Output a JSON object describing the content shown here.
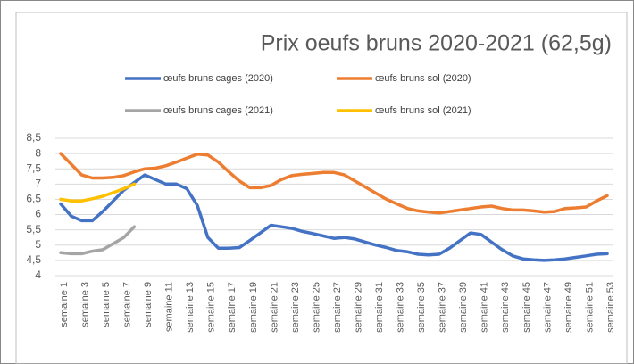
{
  "chart_data": {
    "type": "line",
    "title": "Prix oeufs bruns 2020-2021 (62,5g)",
    "categories": [
      "semaine 1",
      null,
      "semaine 3",
      null,
      "semaine 5",
      null,
      "semaine 7",
      null,
      "semaine 9",
      null,
      "semaine 11",
      null,
      "semaine 13",
      null,
      "semaine 15",
      null,
      "semaine 17",
      null,
      "semaine 19",
      null,
      "semaine 21",
      null,
      "semaine 23",
      null,
      "semaine 25",
      null,
      "semaine 27",
      null,
      "semaine 29",
      null,
      "semaine 31",
      null,
      "semaine 33",
      null,
      "semaine 35",
      null,
      "semaine 37",
      null,
      "semaine 39",
      null,
      "semaine 41",
      null,
      "semaine 43",
      null,
      "semaine 45",
      null,
      "semaine 47",
      null,
      "semaine 49",
      null,
      "semaine 51",
      null,
      "semaine 53"
    ],
    "series": [
      {
        "name": "œufs bruns cages (2020)",
        "color": "#4472c4",
        "values": [
          6.35,
          5.95,
          5.8,
          5.8,
          6.1,
          6.45,
          6.8,
          7.05,
          7.3,
          7.15,
          7.0,
          7.0,
          6.85,
          6.3,
          5.25,
          4.9,
          4.9,
          4.92,
          5.15,
          5.4,
          5.65,
          5.6,
          5.55,
          5.45,
          5.38,
          5.3,
          5.22,
          5.25,
          5.2,
          5.1,
          5.0,
          4.92,
          4.82,
          4.78,
          4.7,
          4.68,
          4.7,
          4.9,
          5.15,
          5.4,
          5.35,
          5.1,
          4.85,
          4.65,
          4.55,
          4.52,
          4.5,
          4.52,
          4.55,
          4.6,
          4.65,
          4.7,
          4.72
        ]
      },
      {
        "name": "œufs bruns sol (2020)",
        "color": "#ed7d31",
        "values": [
          8.0,
          7.65,
          7.3,
          7.2,
          7.2,
          7.22,
          7.28,
          7.4,
          7.5,
          7.52,
          7.6,
          7.72,
          7.85,
          7.98,
          7.95,
          7.72,
          7.4,
          7.1,
          6.88,
          6.88,
          6.95,
          7.15,
          7.28,
          7.32,
          7.35,
          7.38,
          7.38,
          7.3,
          7.1,
          6.9,
          6.7,
          6.5,
          6.35,
          6.2,
          6.12,
          6.08,
          6.05,
          6.1,
          6.15,
          6.2,
          6.25,
          6.28,
          6.2,
          6.15,
          6.15,
          6.12,
          6.08,
          6.1,
          6.2,
          6.22,
          6.25,
          6.45,
          6.62
        ]
      },
      {
        "name": "œufs bruns cages (2021)",
        "color": "#a5a5a5",
        "values": [
          4.75,
          4.72,
          4.72,
          4.8,
          4.85,
          5.05,
          5.25,
          5.6,
          null,
          null,
          null,
          null,
          null,
          null,
          null,
          null,
          null,
          null,
          null,
          null,
          null,
          null,
          null,
          null,
          null,
          null,
          null,
          null,
          null,
          null,
          null,
          null,
          null,
          null,
          null,
          null,
          null,
          null,
          null,
          null,
          null,
          null,
          null,
          null,
          null,
          null,
          null,
          null,
          null,
          null,
          null,
          null,
          null
        ]
      },
      {
        "name": "œufs bruns sol (2021)",
        "color": "#ffc000",
        "values": [
          6.5,
          6.45,
          6.45,
          6.52,
          6.6,
          6.72,
          6.85,
          7.0,
          null,
          null,
          null,
          null,
          null,
          null,
          null,
          null,
          null,
          null,
          null,
          null,
          null,
          null,
          null,
          null,
          null,
          null,
          null,
          null,
          null,
          null,
          null,
          null,
          null,
          null,
          null,
          null,
          null,
          null,
          null,
          null,
          null,
          null,
          null,
          null,
          null,
          null,
          null,
          null,
          null,
          null,
          null,
          null,
          null
        ]
      }
    ],
    "ylim": [
      4,
      8.5
    ],
    "yticks": [
      4,
      {
        "value": 4.5,
        "label": "4,5"
      },
      5,
      {
        "value": 5.5,
        "label": "5,5"
      },
      6,
      {
        "value": 6.5,
        "label": "6,5"
      },
      7,
      {
        "value": 7.5,
        "label": "7,5"
      },
      8,
      {
        "value": 8.5,
        "label": "8,5"
      }
    ],
    "grid": true
  }
}
